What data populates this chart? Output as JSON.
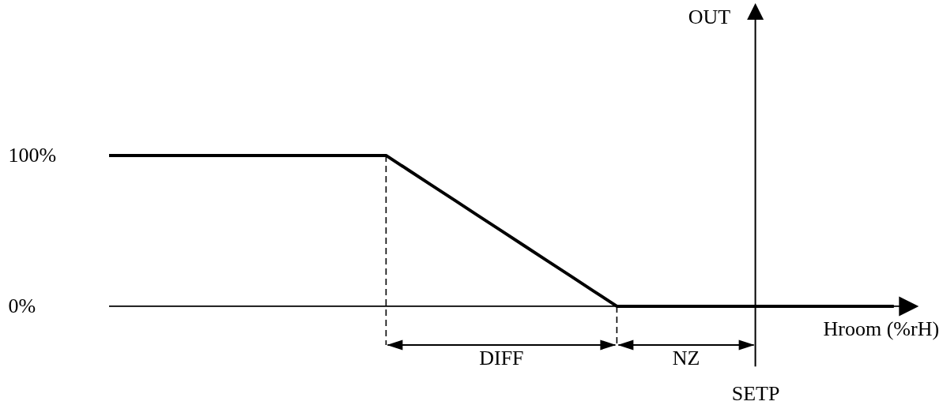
{
  "chart_data": {
    "type": "line",
    "xlabel": "Hroom (%rH)",
    "ylabel": "OUT",
    "categories": [
      null,
      null,
      null,
      null,
      null,
      null,
      null,
      null,
      null,
      null,
      null,
      null,
      null,
      null,
      null,
      null,
      null,
      null,
      null,
      null,
      null,
      null,
      null,
      null,
      null,
      null,
      null,
      null,
      "SETP",
      null,
      null,
      null,
      null,
      null,
      null
    ],
    "series": [
      {
        "color": "#000000",
        "values": [
          100,
          100,
          100,
          100,
          100,
          100,
          100,
          100,
          100,
          100,
          100,
          100,
          100,
          90,
          80,
          70,
          60,
          50,
          40,
          30,
          20,
          10,
          0,
          0,
          0,
          0,
          0,
          0,
          0,
          0,
          0,
          0,
          0,
          0,
          0
        ]
      }
    ],
    "ylim": [
      -40,
      190
    ],
    "yticks": [
      {
        "value": 0,
        "label": "0%"
      },
      {
        "value": 100,
        "label": "100%"
      }
    ],
    "annotations": [
      "DIFF",
      "NZ"
    ]
  }
}
